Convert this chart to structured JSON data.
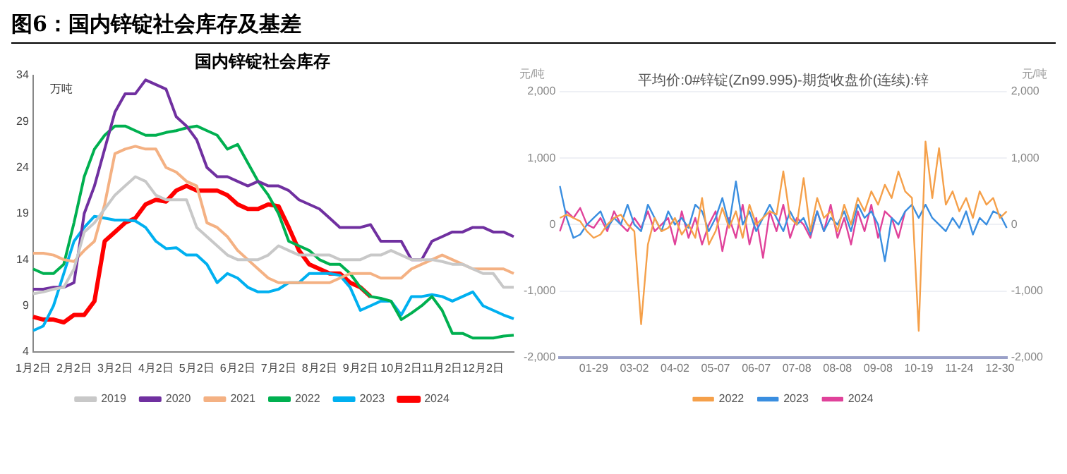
{
  "chart_data": [
    {
      "type": "line",
      "title": "图6：国内锌锭社会库存及基差",
      "subtitle": "国内锌锭社会库存",
      "ylabel": "万吨",
      "categories": [
        "1月2日",
        null,
        null,
        null,
        "2月2日",
        null,
        null,
        null,
        "3月2日",
        null,
        null,
        null,
        "4月2日",
        null,
        null,
        null,
        "5月2日",
        null,
        null,
        null,
        "6月2日",
        null,
        null,
        null,
        "7月2日",
        null,
        null,
        null,
        "8月2日",
        null,
        null,
        null,
        "9月2日",
        null,
        null,
        null,
        "10月2日",
        null,
        null,
        null,
        "11月2日",
        null,
        null,
        null,
        "12月2日",
        null,
        null,
        null
      ],
      "series": [
        {
          "name": "2019",
          "color": "#c8c8c8",
          "values": [
            10.3,
            10.5,
            10.8,
            11,
            13,
            17,
            18,
            19.5,
            21,
            22,
            23,
            22.5,
            21,
            20.5,
            20.5,
            20.5,
            17.5,
            16.5,
            15.5,
            14.5,
            14,
            14,
            14,
            14.5,
            15.5,
            15,
            14.5,
            14.5,
            14.5,
            14.5,
            14,
            14,
            14,
            14.5,
            14.5,
            15,
            14.5,
            14,
            14,
            14,
            13.8,
            13.5,
            13.5,
            13,
            12.5,
            12.5,
            11,
            11
          ]
        },
        {
          "name": "2020",
          "color": "#7030a0",
          "values": [
            10.8,
            10.8,
            11,
            11,
            11.5,
            19,
            22,
            26,
            30,
            32,
            32,
            33.5,
            33,
            32.5,
            29.5,
            28.5,
            27,
            24,
            23,
            23,
            22.5,
            22,
            22.5,
            22,
            22,
            21.5,
            20.5,
            20,
            19.5,
            18.5,
            17.5,
            17.5,
            17.5,
            17.8,
            16,
            16,
            16,
            14,
            14,
            16,
            16.5,
            17,
            17,
            17.5,
            17.5,
            17,
            17,
            16.5
          ]
        },
        {
          "name": "2021",
          "color": "#f4b183",
          "values": [
            14.7,
            14.7,
            14.5,
            14,
            13.8,
            15,
            16,
            20,
            25.5,
            26,
            26.3,
            26,
            26,
            24,
            23.5,
            22.5,
            22,
            18,
            17.5,
            16.5,
            15,
            14,
            13,
            12,
            11.5,
            11.5,
            11.5,
            11.5,
            11.5,
            11.5,
            12,
            12.5,
            12.5,
            12.5,
            12,
            12,
            12,
            13,
            13.5,
            14,
            14.5,
            14,
            13.5,
            13,
            13,
            13,
            13,
            12.5
          ]
        },
        {
          "name": "2022",
          "color": "#00b050",
          "values": [
            13,
            12.5,
            12.5,
            13.5,
            18,
            23,
            26,
            27.5,
            28.5,
            28.5,
            28,
            27.5,
            27.5,
            27.8,
            28,
            28.3,
            28.5,
            28,
            27.5,
            26,
            26.5,
            24.5,
            22.5,
            21,
            19,
            16,
            15.5,
            15,
            14,
            13.5,
            13.5,
            12.5,
            11,
            10,
            9.8,
            9.5,
            7.5,
            8.2,
            9,
            10,
            8.5,
            6,
            6,
            5.5,
            5.5,
            5.5,
            5.7,
            5.8
          ]
        },
        {
          "name": "2023",
          "color": "#00b0f0",
          "values": [
            6.3,
            6.8,
            9,
            12.5,
            16,
            17.5,
            18.7,
            18.5,
            18.3,
            18.3,
            18.2,
            17.5,
            16,
            15.2,
            15.3,
            14.5,
            14.5,
            13.5,
            11.5,
            12.5,
            12,
            11,
            10.5,
            10.5,
            10.8,
            11.5,
            11.5,
            12.5,
            12.5,
            12.5,
            12.3,
            11,
            8.5,
            9,
            9.5,
            9.5,
            8,
            10,
            10,
            10.2,
            10,
            9.5,
            10,
            10.5,
            9,
            8.5,
            8,
            7.6
          ]
        },
        {
          "name": "2024",
          "color": "#ff0000",
          "values": [
            7.8,
            7.5,
            7.5,
            7.2,
            8,
            8,
            9.5,
            16,
            17,
            18,
            18.5,
            20,
            20.5,
            20.3,
            21.5,
            22,
            21.5,
            21.5,
            21.5,
            21,
            20,
            19.5,
            19.5,
            20,
            19.8,
            17.5,
            15,
            13.5,
            13,
            12.5,
            12.5,
            11.5,
            11,
            10,
            null,
            null,
            null,
            null,
            null,
            null,
            null,
            null,
            null,
            null,
            null,
            null,
            null,
            null
          ]
        }
      ],
      "ylim": [
        4,
        34
      ],
      "yticks": [
        4,
        9,
        14,
        19,
        24,
        29,
        34
      ],
      "grid": false,
      "legend": "bottom"
    },
    {
      "type": "line",
      "subtitle": "平均价:0#锌锭(Zn99.995)-期货收盘价(连续):锌",
      "ylabel": "元/吨",
      "y2label": "元/吨",
      "categories": [
        null,
        null,
        null,
        null,
        null,
        "01-29",
        null,
        null,
        null,
        null,
        null,
        "03-02",
        null,
        null,
        null,
        null,
        null,
        "04-02",
        null,
        null,
        null,
        null,
        null,
        "05-07",
        null,
        null,
        null,
        null,
        null,
        "06-07",
        null,
        null,
        null,
        null,
        null,
        "07-08",
        null,
        null,
        null,
        null,
        null,
        "08-08",
        null,
        null,
        null,
        null,
        null,
        "09-08",
        null,
        null,
        null,
        null,
        null,
        "10-19",
        null,
        null,
        null,
        null,
        null,
        "11-24",
        null,
        null,
        null,
        null,
        null,
        "12-30",
        null
      ],
      "series": [
        {
          "name": "2022",
          "color": "#f5a04a",
          "values": [
            100,
            150,
            100,
            50,
            -100,
            -200,
            -150,
            0,
            100,
            150,
            0,
            -100,
            -1500,
            -300,
            100,
            -100,
            -50,
            100,
            -150,
            0,
            -200,
            400,
            -300,
            -100,
            250,
            -50,
            200,
            -200,
            300,
            0,
            100,
            200,
            150,
            800,
            100,
            0,
            700,
            -100,
            400,
            100,
            200,
            -100,
            300,
            0,
            400,
            200,
            500,
            300,
            600,
            400,
            800,
            500,
            400,
            -1600,
            1250,
            400,
            1150,
            300,
            500,
            200,
            400,
            100,
            500,
            300,
            400,
            100,
            200
          ]
        },
        {
          "name": "2023",
          "color": "#3a8ee0",
          "values": [
            580,
            100,
            -200,
            -150,
            0,
            100,
            200,
            -50,
            100,
            0,
            300,
            0,
            -100,
            300,
            100,
            -100,
            200,
            0,
            100,
            -50,
            300,
            200,
            -100,
            100,
            400,
            0,
            650,
            0,
            200,
            -100,
            100,
            300,
            100,
            -100,
            200,
            0,
            100,
            -150,
            200,
            -100,
            100,
            0,
            200,
            -100,
            300,
            100,
            200,
            0,
            -550,
            100,
            0,
            200,
            300,
            100,
            300,
            100,
            0,
            -100,
            100,
            -50,
            200,
            -150,
            100,
            0,
            200,
            150,
            -50
          ]
        },
        {
          "name": "2024",
          "color": "#e0429a",
          "values": [
            -100,
            200,
            100,
            250,
            0,
            -50,
            100,
            -100,
            200,
            0,
            -100,
            100,
            -50,
            200,
            -100,
            0,
            100,
            -300,
            200,
            -200,
            100,
            -300,
            0,
            200,
            -400,
            100,
            -200,
            300,
            -300,
            100,
            -500,
            200,
            -100,
            300,
            -200,
            100,
            0,
            -200,
            200,
            -100,
            300,
            -200,
            100,
            -300,
            200,
            -100,
            300,
            -200,
            200,
            100,
            -200,
            200,
            null,
            null,
            null,
            null,
            null,
            null,
            null,
            null,
            null,
            null,
            null,
            null,
            null,
            null,
            null
          ]
        }
      ],
      "ylim": [
        -2000,
        2000
      ],
      "yticks": [
        {
          "value": -2000,
          "label": "-2,000"
        },
        {
          "value": -1000,
          "label": "-1,000"
        },
        0,
        {
          "value": 1000,
          "label": "1,000"
        },
        {
          "value": 2000,
          "label": "2,000"
        }
      ],
      "y2lim": [
        -2000,
        2000
      ],
      "y2ticks": [
        {
          "value": -2000,
          "label": "-2,000"
        },
        {
          "value": -1000,
          "label": "-1,000"
        },
        0,
        {
          "value": 1000,
          "label": "1,000"
        },
        {
          "value": 2000,
          "label": "2,000"
        }
      ],
      "grid": "y",
      "legend": "bottom"
    }
  ]
}
